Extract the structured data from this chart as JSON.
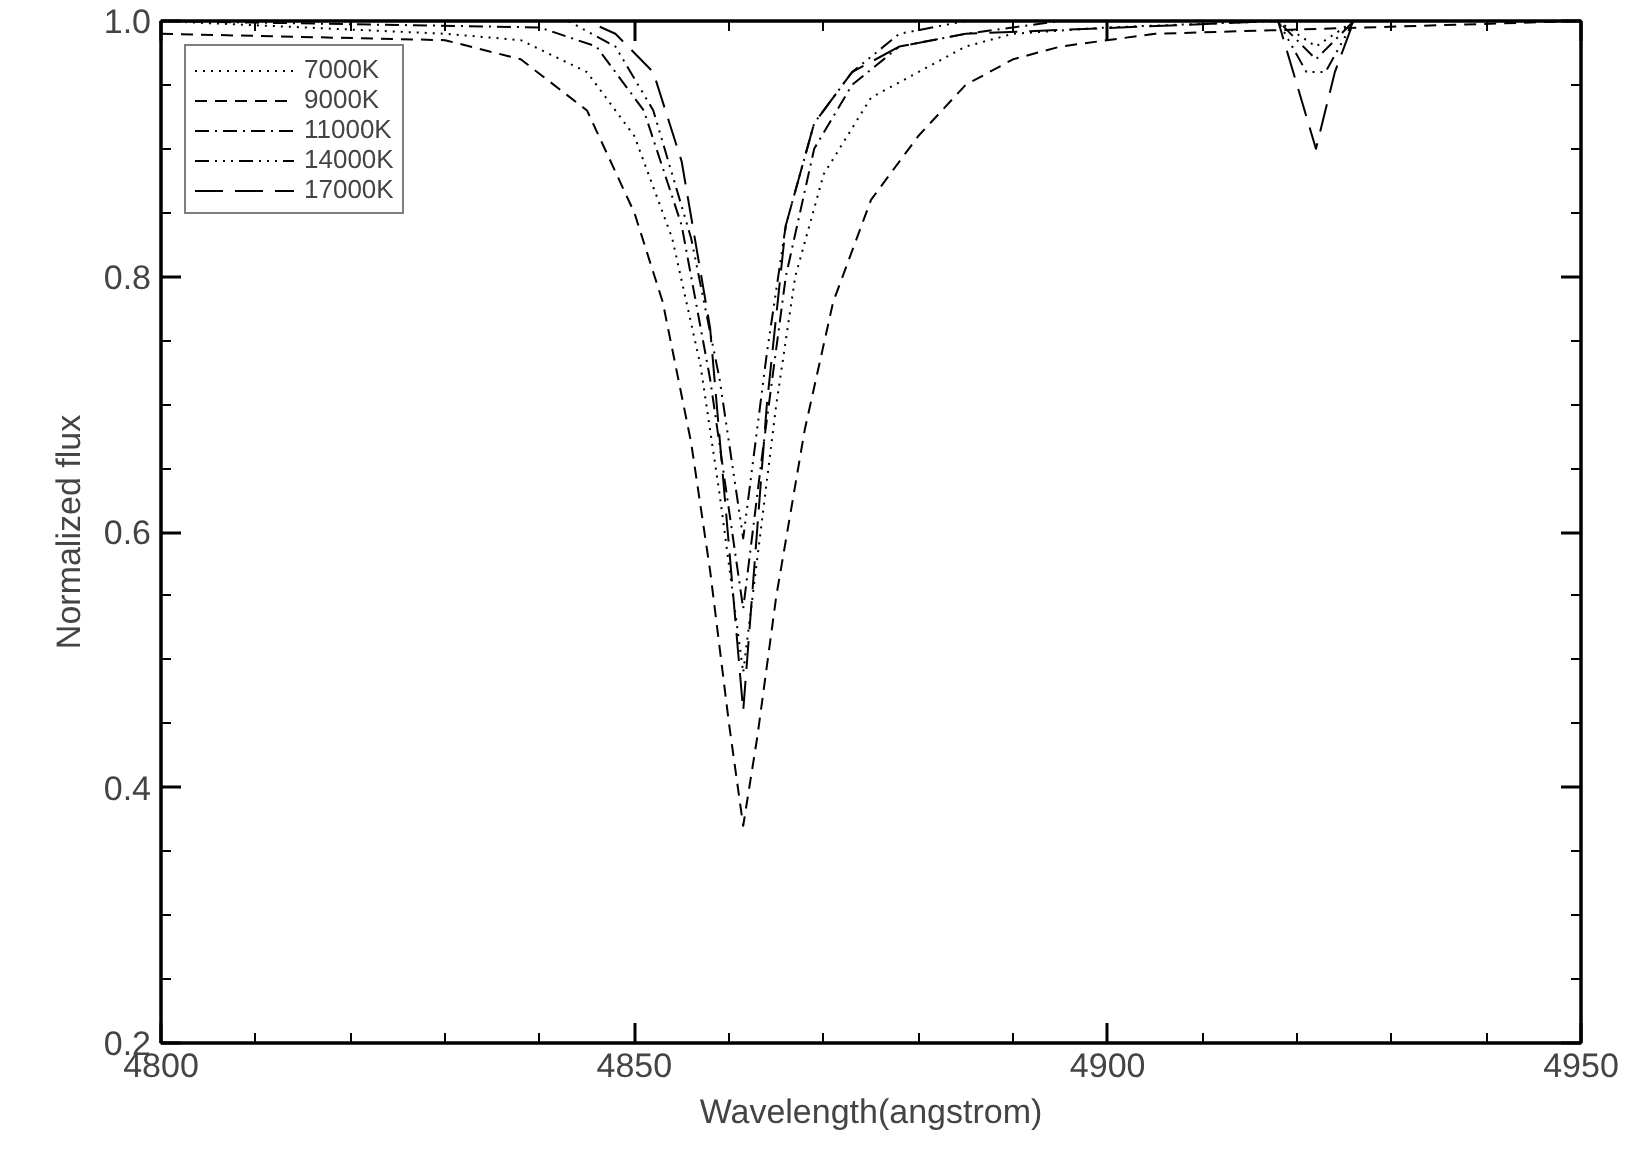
{
  "chart_data": {
    "type": "line",
    "xlabel": "Wavelength(angstrom)",
    "ylabel": "Normalized flux",
    "xlim": [
      4800,
      4950
    ],
    "ylim": [
      0.2,
      1.0
    ],
    "xticks": [
      4800,
      4850,
      4900,
      4950
    ],
    "yticks": [
      {
        "value": 0.2,
        "label": "0.2"
      },
      {
        "value": 0.4,
        "label": "0.4"
      },
      {
        "value": 0.6,
        "label": "0.6"
      },
      {
        "value": 0.8,
        "label": "0.8"
      },
      {
        "value": 1.0,
        "label": "1.0"
      }
    ],
    "grid": false,
    "legend": "top left",
    "marker": "none",
    "series": [
      {
        "name": "7000K",
        "color": "#000000",
        "line_style": "dotted",
        "x": [
          4800,
          4830,
          4838,
          4845,
          4850,
          4854,
          4857,
          4859,
          4861.5,
          4863,
          4865,
          4867,
          4870,
          4875,
          4880,
          4885,
          4890,
          4900,
          4918,
          4922,
          4926,
          4950
        ],
        "values": [
          1.0,
          0.99,
          0.985,
          0.96,
          0.91,
          0.83,
          0.73,
          0.63,
          0.49,
          0.58,
          0.7,
          0.8,
          0.88,
          0.94,
          0.96,
          0.98,
          0.99,
          0.995,
          1.0,
          0.98,
          1.0,
          1.0
        ]
      },
      {
        "name": "9000K",
        "color": "#000000",
        "line_style": "dashed",
        "x": [
          4800,
          4830,
          4838,
          4845,
          4850,
          4853,
          4856,
          4858,
          4860,
          4861.5,
          4863,
          4865,
          4868,
          4871,
          4875,
          4880,
          4885,
          4890,
          4895,
          4905,
          4950
        ],
        "values": [
          0.99,
          0.985,
          0.97,
          0.93,
          0.85,
          0.78,
          0.67,
          0.57,
          0.45,
          0.37,
          0.44,
          0.55,
          0.68,
          0.78,
          0.86,
          0.91,
          0.95,
          0.97,
          0.98,
          0.99,
          1.0
        ]
      },
      {
        "name": "11000K",
        "color": "#000000",
        "line_style": "dashdot",
        "x": [
          4800,
          4840,
          4846,
          4851,
          4855,
          4858,
          4861.5,
          4863.5,
          4866,
          4869,
          4873,
          4878,
          4885,
          4895,
          4918,
          4922,
          4926,
          4950
        ],
        "values": [
          1.0,
          0.995,
          0.98,
          0.93,
          0.84,
          0.72,
          0.54,
          0.66,
          0.8,
          0.9,
          0.95,
          0.98,
          0.99,
          1.0,
          1.0,
          0.97,
          1.0,
          1.0
        ]
      },
      {
        "name": "14000K",
        "color": "#000000",
        "line_style": "dashdotdotdot",
        "x": [
          4800,
          4843,
          4848,
          4852,
          4856,
          4859,
          4861.5,
          4864,
          4866,
          4869,
          4873,
          4878,
          4885,
          4918,
          4921,
          4923,
          4926,
          4950
        ],
        "values": [
          1.0,
          1.0,
          0.98,
          0.93,
          0.83,
          0.72,
          0.595,
          0.74,
          0.84,
          0.92,
          0.96,
          0.99,
          1.0,
          1.0,
          0.96,
          0.96,
          1.0,
          1.0
        ]
      },
      {
        "name": "17000K",
        "color": "#000000",
        "line_style": "longdash",
        "x": [
          4800,
          4845,
          4848,
          4852,
          4855,
          4858,
          4861.5,
          4864,
          4866,
          4869,
          4873,
          4878,
          4885,
          4918,
          4920,
          4922,
          4924,
          4926,
          4950
        ],
        "values": [
          1.0,
          1.0,
          0.99,
          0.96,
          0.89,
          0.76,
          0.46,
          0.7,
          0.84,
          0.92,
          0.96,
          0.98,
          0.99,
          1.0,
          0.95,
          0.9,
          0.96,
          1.0,
          1.0
        ]
      }
    ]
  }
}
